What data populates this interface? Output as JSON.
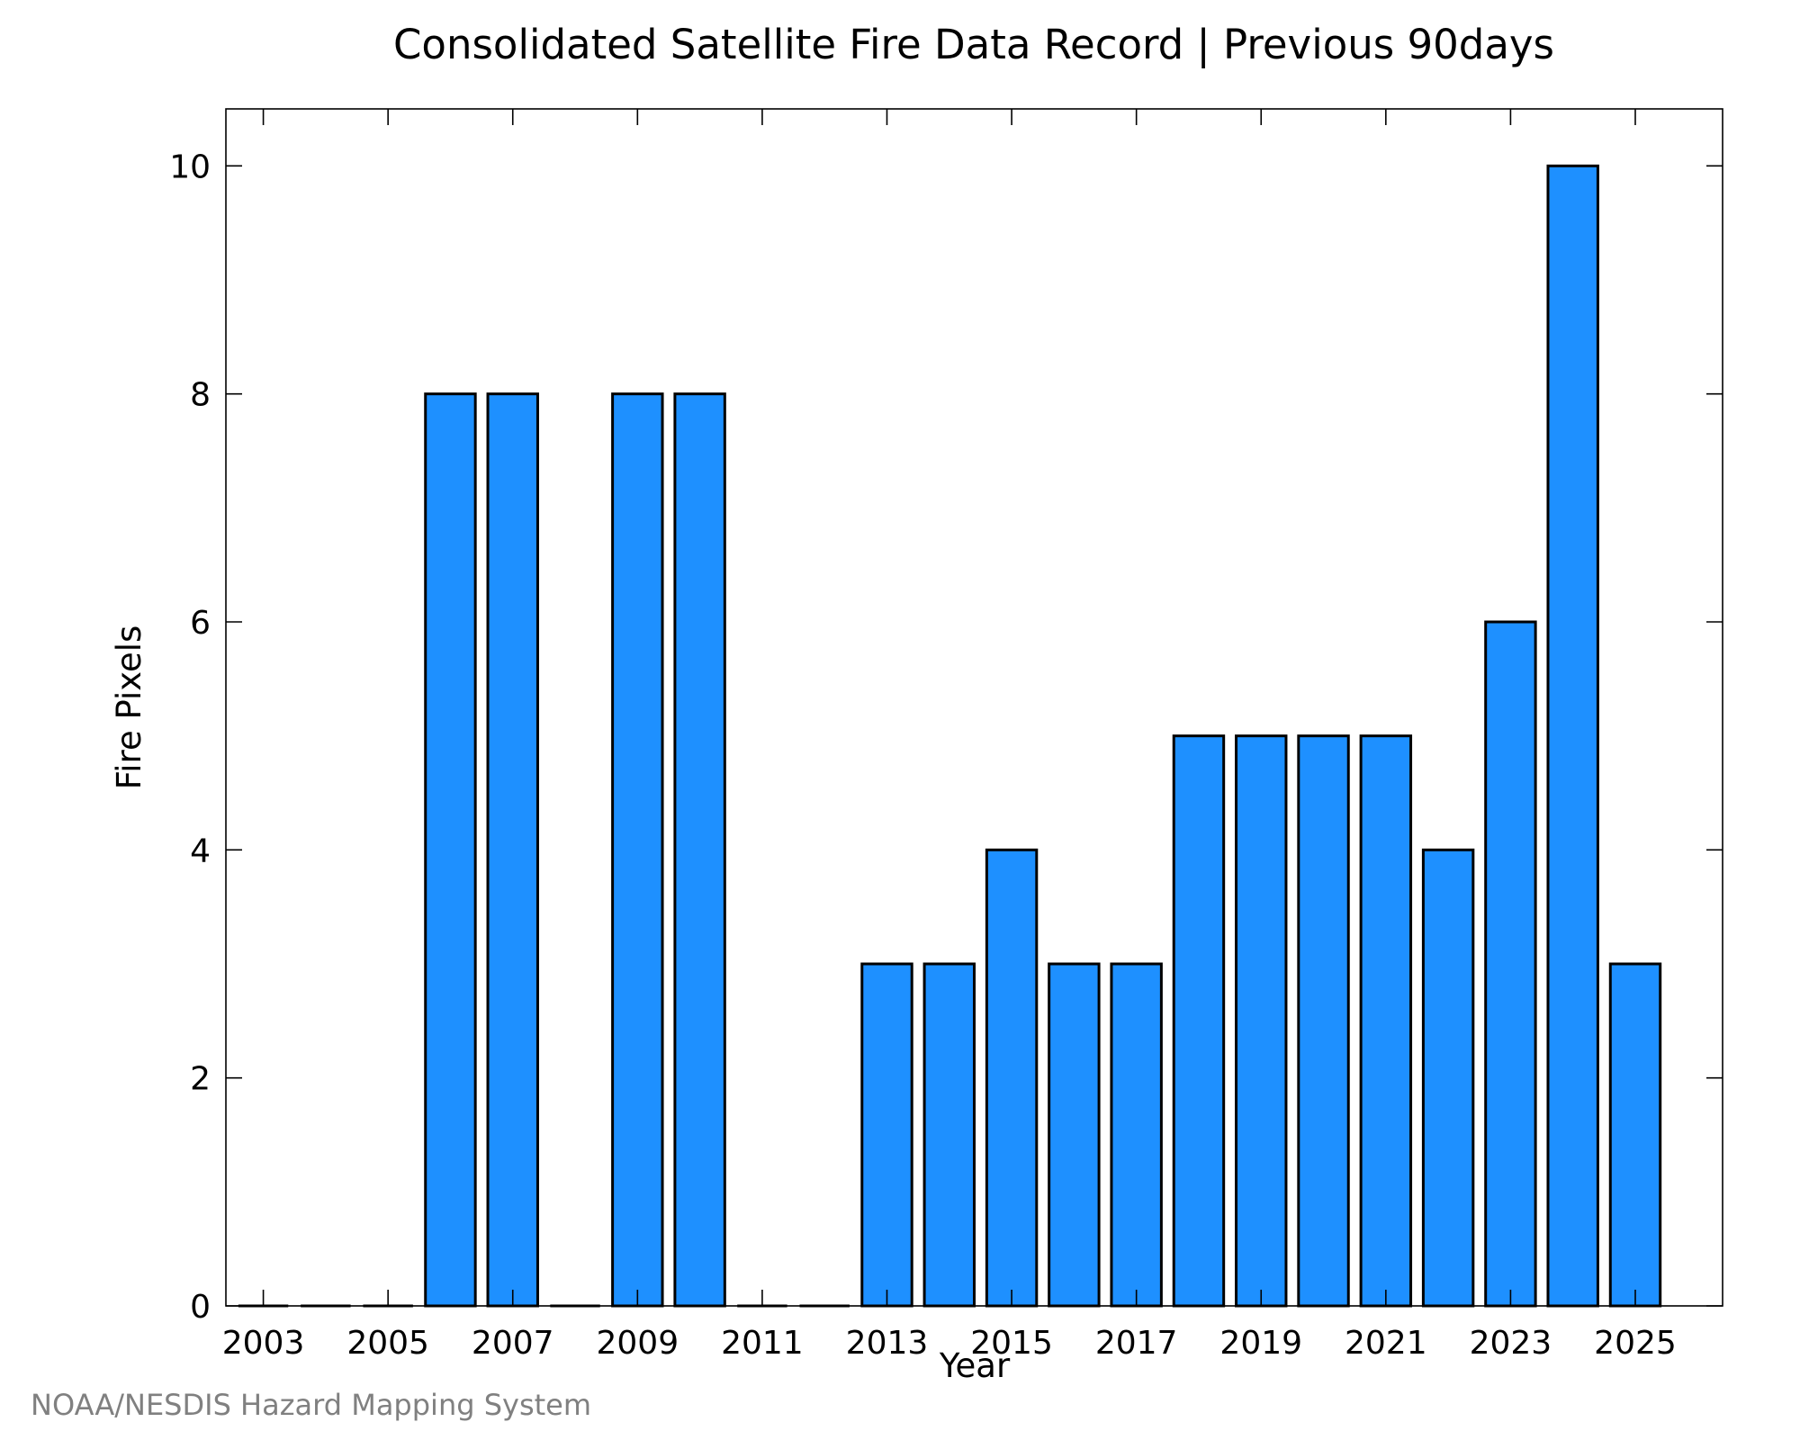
{
  "chart_data": {
    "type": "bar",
    "title": "Consolidated Satellite Fire Data Record | Previous 90days",
    "xlabel": "Year",
    "ylabel": "Fire Pixels",
    "categories": [
      2003,
      2004,
      2005,
      2006,
      2007,
      2008,
      2009,
      2010,
      2011,
      2012,
      2013,
      2014,
      2015,
      2016,
      2017,
      2018,
      2019,
      2020,
      2021,
      2022,
      2023,
      2024,
      2025
    ],
    "values": [
      0,
      0,
      0,
      8,
      8,
      0,
      8,
      8,
      0,
      0,
      3,
      3,
      4,
      3,
      3,
      5,
      5,
      5,
      5,
      4,
      6,
      10,
      3
    ],
    "x_ticks": [
      2003,
      2005,
      2007,
      2009,
      2011,
      2013,
      2015,
      2017,
      2019,
      2021,
      2023,
      2025
    ],
    "y_ticks": [
      0,
      2,
      4,
      6,
      8,
      10
    ],
    "xlim": [
      2002.4,
      2026.4
    ],
    "ylim": [
      0,
      10.5
    ],
    "grid": false,
    "bar_color": "#1E90FF",
    "edge_color": "#000000",
    "credit": "NOAA/NESDIS Hazard Mapping System"
  }
}
